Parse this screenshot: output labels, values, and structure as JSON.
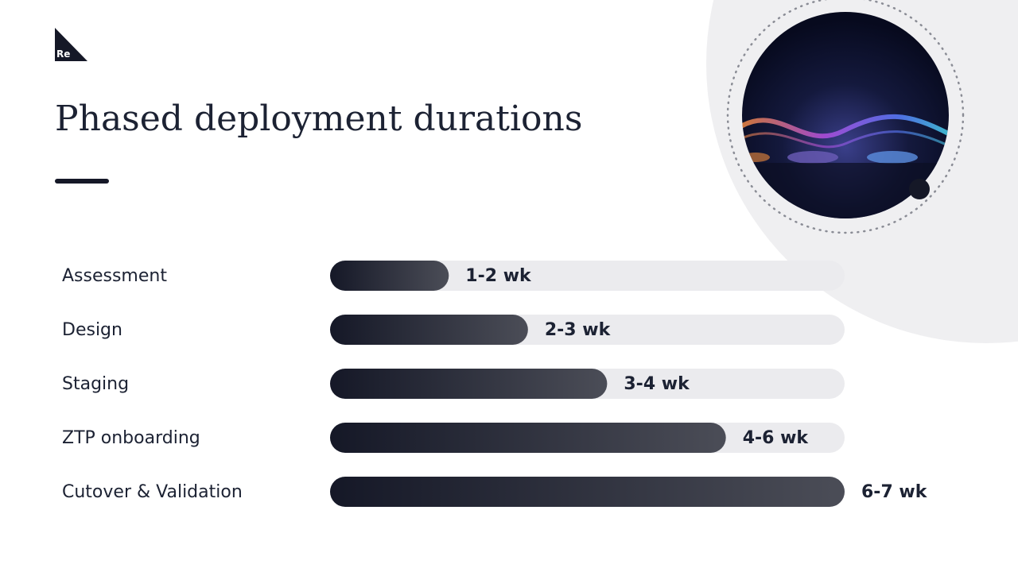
{
  "logo": "Re",
  "chart_data": {
    "type": "bar",
    "orientation": "horizontal",
    "title": "Phased deployment durations",
    "categories": [
      "Assessment",
      "Design",
      "Staging",
      "ZTP onboarding",
      "Cutover & Validation"
    ],
    "values": [
      1.5,
      2.5,
      3.5,
      5,
      6.5
    ],
    "value_labels": [
      "1-2 wk",
      "2-3 wk",
      "3-4 wk",
      "4-6 wk",
      "6-7 wk"
    ],
    "xlim": [
      0,
      6.5
    ],
    "color": "#151827"
  }
}
